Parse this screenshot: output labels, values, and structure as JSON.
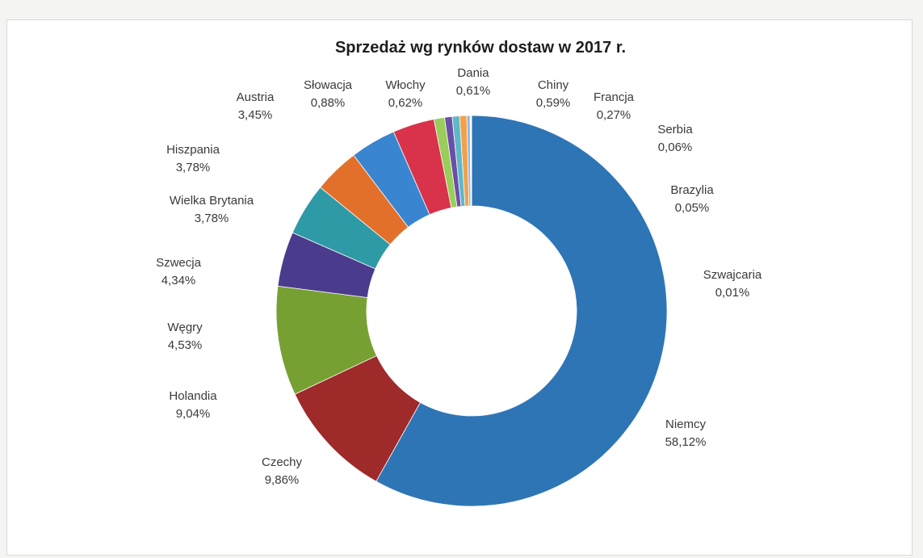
{
  "chart_data": {
    "type": "pie",
    "variant": "doughnut",
    "title": "Sprzedaż wg rynków dostaw w 2017 r.",
    "slices": [
      {
        "name": "Niemcy",
        "value": 58.12,
        "label": "58,12%",
        "color": "#2e75b6"
      },
      {
        "name": "Czechy",
        "value": 9.86,
        "label": "9,86%",
        "color": "#9e2a2a"
      },
      {
        "name": "Holandia",
        "value": 9.04,
        "label": "9,04%",
        "color": "#77a033"
      },
      {
        "name": "Węgry",
        "value": 4.53,
        "label": "4,53%",
        "color": "#4b3b8c"
      },
      {
        "name": "Szwecja",
        "value": 4.34,
        "label": "4,34%",
        "color": "#2e9aa6"
      },
      {
        "name": "Wielka Brytania",
        "value": 3.78,
        "label": "3,78%",
        "color": "#e2702a"
      },
      {
        "name": "Hiszpania",
        "value": 3.78,
        "label": "3,78%",
        "color": "#3a85d0"
      },
      {
        "name": "Austria",
        "value": 3.45,
        "label": "3,45%",
        "color": "#d8334a"
      },
      {
        "name": "Słowacja",
        "value": 0.88,
        "label": "0,88%",
        "color": "#9acd5a"
      },
      {
        "name": "Włochy",
        "value": 0.62,
        "label": "0,62%",
        "color": "#6a4fa8"
      },
      {
        "name": "Dania",
        "value": 0.61,
        "label": "0,61%",
        "color": "#5fb8c8"
      },
      {
        "name": "Chiny",
        "value": 0.59,
        "label": "0,59%",
        "color": "#f0a24a"
      },
      {
        "name": "Francja",
        "value": 0.27,
        "label": "0,27%",
        "color": "#8fb4e6"
      },
      {
        "name": "Serbia",
        "value": 0.06,
        "label": "0,06%",
        "color": "#e8918f"
      },
      {
        "name": "Brazylia",
        "value": 0.05,
        "label": "0,05%",
        "color": "#c6d89a"
      },
      {
        "name": "Szwajcaria",
        "value": 0.01,
        "label": "0,01%",
        "color": "#b3a6d6"
      }
    ]
  }
}
